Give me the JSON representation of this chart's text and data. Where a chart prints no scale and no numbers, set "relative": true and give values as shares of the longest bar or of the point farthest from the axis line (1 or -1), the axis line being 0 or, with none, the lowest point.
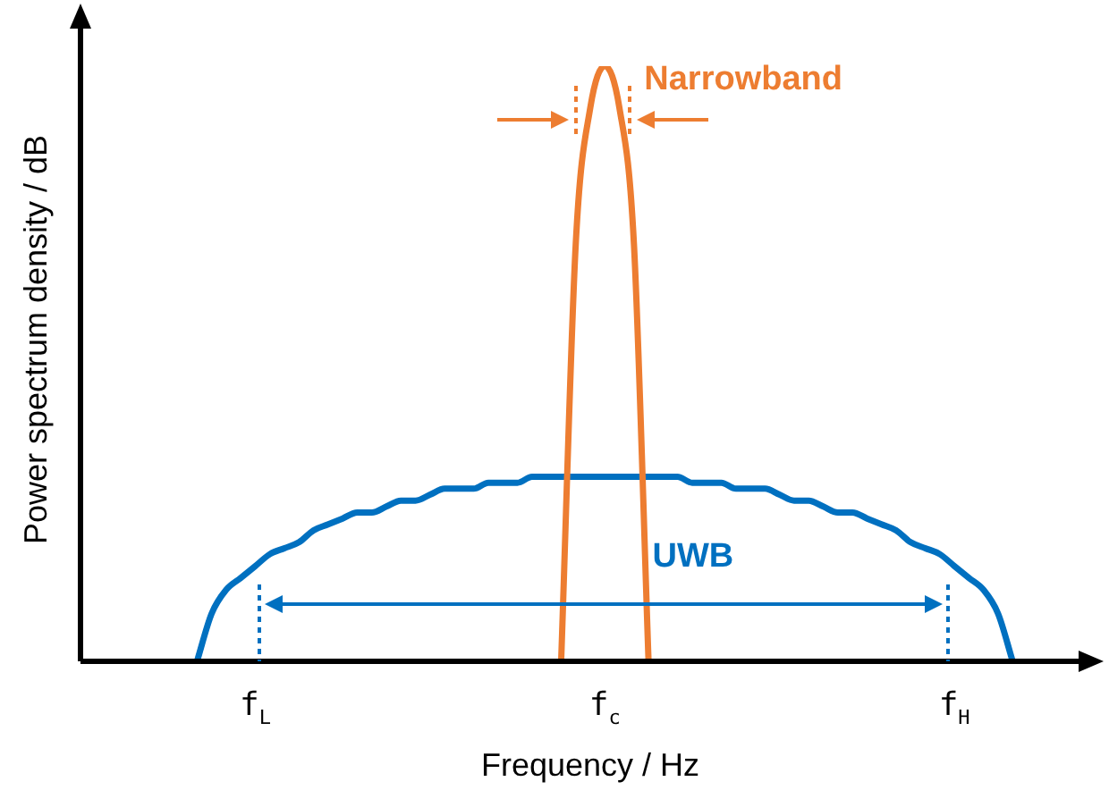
{
  "chart_data": {
    "type": "line",
    "relative": true,
    "legend": false,
    "xlabel": "Frequency / Hz",
    "ylabel": "Power spectrum density / dB",
    "categories": [
      null,
      null,
      null,
      null,
      null,
      null,
      null,
      null,
      null,
      null,
      null,
      null,
      "f$_{L}$",
      null,
      null,
      null,
      null,
      null,
      null,
      null,
      null,
      null,
      null,
      null,
      null,
      null,
      null,
      null,
      null,
      null,
      null,
      null,
      null,
      null,
      null,
      null,
      "f$_{c}$",
      null,
      null,
      null,
      null,
      null,
      null,
      null,
      null,
      null,
      null,
      null,
      null,
      null,
      null,
      null,
      null,
      null,
      null,
      null,
      null,
      null,
      null,
      null,
      "f$_{H}$",
      null,
      null,
      null,
      null,
      null,
      null,
      null,
      null,
      null,
      null
    ],
    "series": [
      {
        "name": "Narrowband",
        "color": "#ed7d31",
        "values": [
          null,
          null,
          null,
          null,
          null,
          null,
          null,
          null,
          null,
          null,
          null,
          null,
          null,
          null,
          null,
          null,
          null,
          null,
          null,
          null,
          null,
          null,
          null,
          null,
          null,
          null,
          null,
          null,
          null,
          null,
          null,
          null,
          null,
          0,
          0.7,
          0.93,
          1,
          0.93,
          0.7,
          0,
          null,
          null,
          null,
          null,
          null,
          null,
          null,
          null,
          null,
          null,
          null,
          null,
          null,
          null,
          null,
          null,
          null,
          null,
          null,
          null,
          null,
          null,
          null,
          null,
          null,
          null,
          null,
          null,
          null,
          null,
          null
        ]
      },
      {
        "name": "UWB",
        "color": "#0070c0",
        "values": [
          null,
          null,
          null,
          null,
          null,
          null,
          null,
          null,
          0,
          0.08,
          0.12,
          0.14,
          0.16,
          0.18,
          0.19,
          0.2,
          0.22,
          0.23,
          0.24,
          0.25,
          0.25,
          0.26,
          0.27,
          0.27,
          0.28,
          0.29,
          0.29,
          0.29,
          0.3,
          0.3,
          0.3,
          0.31,
          0.31,
          0.31,
          0.31,
          0.31,
          0.31,
          0.31,
          0.31,
          0.31,
          0.31,
          0.31,
          0.3,
          0.3,
          0.3,
          0.29,
          0.29,
          0.29,
          0.28,
          0.27,
          0.27,
          0.26,
          0.25,
          0.25,
          0.24,
          0.23,
          0.22,
          0.2,
          0.19,
          0.18,
          0.16,
          0.14,
          0.12,
          0.08,
          0,
          null,
          null,
          null,
          null,
          null,
          null
        ]
      }
    ]
  }
}
